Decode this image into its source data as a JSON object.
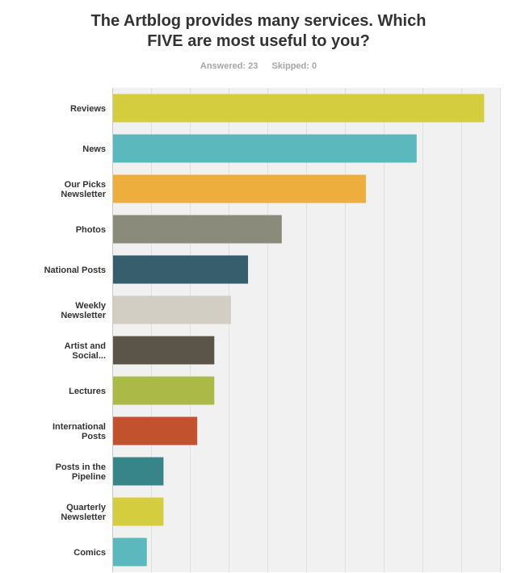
{
  "title_lines": [
    "The Artblog provides many services. Which",
    "FIVE are most useful to you?"
  ],
  "answered": "Answered: 23",
  "skipped": "Skipped: 0",
  "chart_data": {
    "type": "bar",
    "orientation": "horizontal",
    "categories": [
      [
        "Reviews"
      ],
      [
        "News"
      ],
      [
        "Our Picks",
        "Newsletter"
      ],
      [
        "Photos"
      ],
      [
        "National Posts"
      ],
      [
        "Weekly",
        "Newsletter"
      ],
      [
        "Artist and",
        "Social..."
      ],
      [
        "Lectures"
      ],
      [
        "International",
        "Posts"
      ],
      [
        "Posts in the",
        "Pipeline"
      ],
      [
        "Quarterly",
        "Newsletter"
      ],
      [
        "Comics"
      ]
    ],
    "values": [
      95.7,
      78.3,
      65.2,
      43.5,
      34.8,
      30.4,
      26.1,
      26.1,
      21.7,
      13.0,
      13.0,
      8.7
    ],
    "colors": [
      "#d4ce3f",
      "#5bb9be",
      "#edae3e",
      "#8b8b7b",
      "#375e6c",
      "#d3cec3",
      "#5b5549",
      "#abb946",
      "#c2512e",
      "#378589",
      "#d4ce3f",
      "#5bb9be"
    ],
    "xlim": [
      0,
      100
    ],
    "grid": true,
    "grid_step": 10,
    "plot_background": "#f1f1f1",
    "grid_color": "#e0e0e0"
  }
}
